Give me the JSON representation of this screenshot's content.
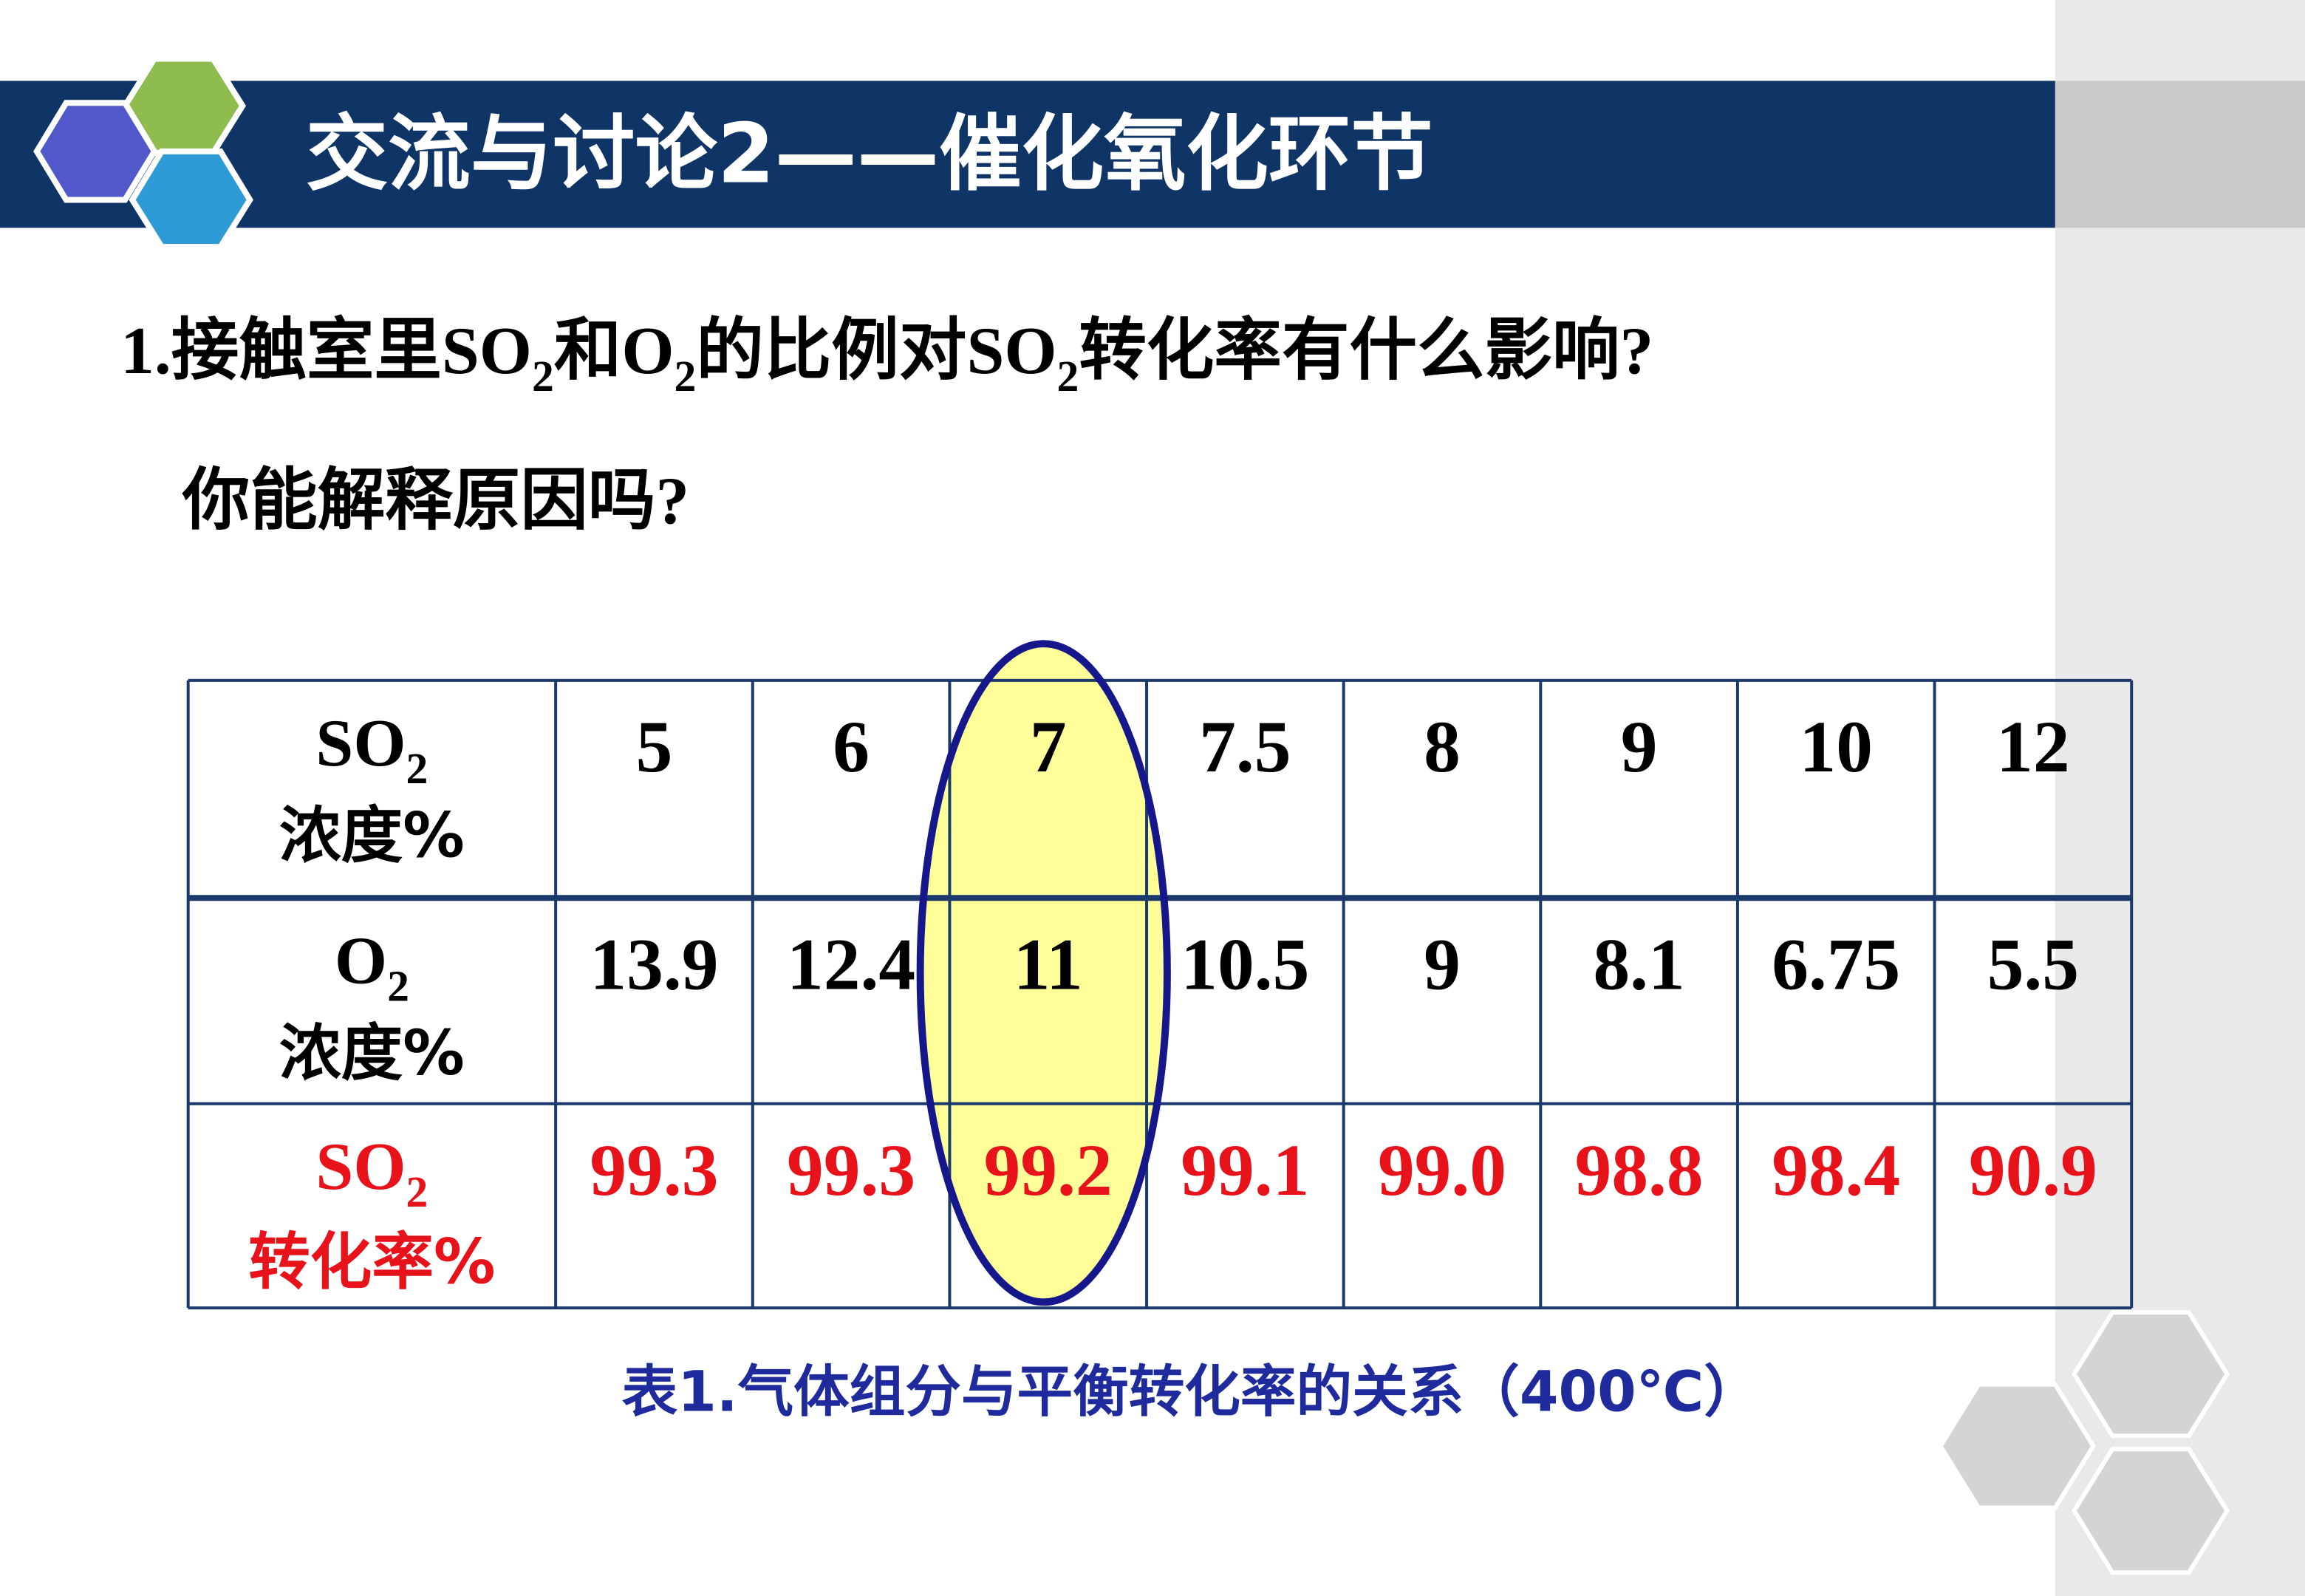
{
  "header": {
    "title": "交流与讨论2——催化氧化环节"
  },
  "question": {
    "line1": [
      "1.接触室里SO",
      "2",
      "和O",
      "2",
      "的比例对SO",
      "2",
      "转化率有什么影响?"
    ],
    "line2": "你能解释原因吗?"
  },
  "table": {
    "rows": [
      {
        "label": {
          "main": "SO",
          "sub": "2",
          "unit": "浓度%"
        },
        "cells": [
          "5",
          "6",
          "7",
          "7.5",
          "8",
          "9",
          "10",
          "12"
        ]
      },
      {
        "label": {
          "main": "O",
          "sub": "2",
          "unit": "浓度%"
        },
        "cells": [
          "13.9",
          "12.4",
          "11",
          "10.5",
          "9",
          "8.1",
          "6.75",
          "5.5"
        ]
      },
      {
        "label": {
          "main": "SO",
          "sub": "2",
          "unit": "转化率%"
        },
        "cells": [
          "99.3",
          "99.3",
          "99.2",
          "99.1",
          "99.0",
          "98.8",
          "98.4",
          "90.9"
        ]
      }
    ]
  },
  "caption": "表1.气体组分与平衡转化率的关系（400℃）"
}
